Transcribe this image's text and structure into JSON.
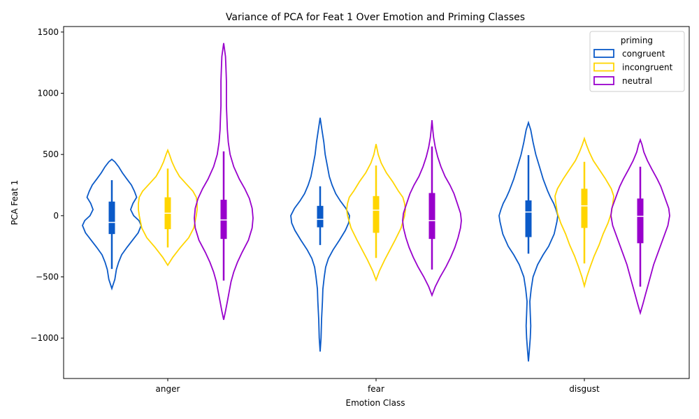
{
  "chart_data": {
    "type": "violin",
    "title": "Variance of PCA for Feat 1 Over Emotion and Priming Classes",
    "xlabel": "Emotion Class",
    "ylabel": "PCA Feat 1",
    "categories": [
      "anger",
      "fear",
      "disgust"
    ],
    "ylim": [
      -1330,
      1545
    ],
    "yticks": [
      -1000,
      -500,
      0,
      500,
      1000,
      1500
    ],
    "ytick_labels": [
      "−1000",
      "−500",
      "0",
      "500",
      "1000",
      "1500"
    ],
    "grid": false,
    "legend": {
      "title": "priming",
      "position": "top-right"
    },
    "series": [
      {
        "name": "congruent",
        "color": "#0b5ac8",
        "violins": [
          {
            "min": -595,
            "max": 460,
            "q1": -150,
            "median": -55,
            "q3": 115,
            "wlow": -435,
            "whigh": 290,
            "profile": [
              [
                -595,
                0
              ],
              [
                -520,
                8
              ],
              [
                -440,
                12
              ],
              [
                -380,
                18
              ],
              [
                -320,
                26
              ],
              [
                -260,
                40
              ],
              [
                -200,
                55
              ],
              [
                -140,
                70
              ],
              [
                -80,
                78
              ],
              [
                -40,
                72
              ],
              [
                0,
                58
              ],
              [
                50,
                50
              ],
              [
                100,
                56
              ],
              [
                150,
                66
              ],
              [
                200,
                60
              ],
              [
                250,
                52
              ],
              [
                300,
                40
              ],
              [
                350,
                28
              ],
              [
                400,
                18
              ],
              [
                440,
                8
              ],
              [
                460,
                0
              ]
            ]
          },
          {
            "min": -1110,
            "max": 800,
            "q1": -95,
            "median": -30,
            "q3": 80,
            "wlow": -240,
            "whigh": 240,
            "profile": [
              [
                -1110,
                0
              ],
              [
                -1000,
                2
              ],
              [
                -850,
                3
              ],
              [
                -700,
                5
              ],
              [
                -600,
                6
              ],
              [
                -500,
                9
              ],
              [
                -420,
                12
              ],
              [
                -350,
                18
              ],
              [
                -280,
                28
              ],
              [
                -200,
                42
              ],
              [
                -120,
                55
              ],
              [
                -60,
                62
              ],
              [
                0,
                64
              ],
              [
                60,
                56
              ],
              [
                120,
                44
              ],
              [
                180,
                34
              ],
              [
                250,
                26
              ],
              [
                320,
                20
              ],
              [
                400,
                16
              ],
              [
                500,
                11
              ],
              [
                600,
                8
              ],
              [
                700,
                4
              ],
              [
                800,
                0
              ]
            ]
          },
          {
            "min": -1190,
            "max": 760,
            "q1": -175,
            "median": 30,
            "q3": 125,
            "wlow": -310,
            "whigh": 495,
            "profile": [
              [
                -1190,
                0
              ],
              [
                -1100,
                2
              ],
              [
                -1000,
                4
              ],
              [
                -900,
                5
              ],
              [
                -800,
                4
              ],
              [
                -700,
                3
              ],
              [
                -600,
                6
              ],
              [
                -500,
                10
              ],
              [
                -400,
                20
              ],
              [
                -320,
                32
              ],
              [
                -250,
                44
              ],
              [
                -150,
                56
              ],
              [
                -50,
                62
              ],
              [
                0,
                64
              ],
              [
                50,
                60
              ],
              [
                100,
                55
              ],
              [
                150,
                48
              ],
              [
                200,
                42
              ],
              [
                300,
                32
              ],
              [
                400,
                24
              ],
              [
                500,
                16
              ],
              [
                600,
                10
              ],
              [
                700,
                5
              ],
              [
                760,
                0
              ]
            ]
          }
        ]
      },
      {
        "name": "incongruent",
        "color": "#ffd500",
        "violins": [
          {
            "min": -405,
            "max": 535,
            "q1": -110,
            "median": 20,
            "q3": 150,
            "wlow": -260,
            "whigh": 385,
            "profile": [
              [
                -405,
                0
              ],
              [
                -340,
                12
              ],
              [
                -260,
                30
              ],
              [
                -180,
                50
              ],
              [
                -100,
                62
              ],
              [
                0,
                68
              ],
              [
                50,
                70
              ],
              [
                100,
                70
              ],
              [
                150,
                68
              ],
              [
                200,
                60
              ],
              [
                260,
                44
              ],
              [
                320,
                28
              ],
              [
                380,
                18
              ],
              [
                440,
                10
              ],
              [
                500,
                4
              ],
              [
                535,
                0
              ]
            ]
          },
          {
            "min": -525,
            "max": 585,
            "q1": -140,
            "median": 45,
            "q3": 160,
            "wlow": -345,
            "whigh": 410,
            "profile": [
              [
                -525,
                0
              ],
              [
                -450,
                8
              ],
              [
                -360,
                20
              ],
              [
                -280,
                32
              ],
              [
                -200,
                44
              ],
              [
                -100,
                58
              ],
              [
                0,
                66
              ],
              [
                50,
                68
              ],
              [
                100,
                66
              ],
              [
                150,
                62
              ],
              [
                200,
                52
              ],
              [
                280,
                38
              ],
              [
                350,
                24
              ],
              [
                430,
                12
              ],
              [
                500,
                5
              ],
              [
                585,
                0
              ]
            ]
          },
          {
            "min": -575,
            "max": 630,
            "q1": -100,
            "median": 80,
            "q3": 220,
            "wlow": -390,
            "whigh": 440,
            "profile": [
              [
                -575,
                0
              ],
              [
                -500,
                6
              ],
              [
                -420,
                14
              ],
              [
                -330,
                24
              ],
              [
                -240,
                36
              ],
              [
                -150,
                46
              ],
              [
                -60,
                58
              ],
              [
                20,
                66
              ],
              [
                100,
                70
              ],
              [
                160,
                72
              ],
              [
                220,
                66
              ],
              [
                300,
                52
              ],
              [
                380,
                36
              ],
              [
                450,
                22
              ],
              [
                520,
                12
              ],
              [
                580,
                5
              ],
              [
                630,
                0
              ]
            ]
          }
        ]
      },
      {
        "name": "neutral",
        "color": "#9900cc",
        "violins": [
          {
            "min": -850,
            "max": 1410,
            "q1": -190,
            "median": -35,
            "q3": 130,
            "wlow": -530,
            "whigh": 525,
            "profile": [
              [
                -850,
                0
              ],
              [
                -780,
                4
              ],
              [
                -700,
                8
              ],
              [
                -620,
                12
              ],
              [
                -540,
                16
              ],
              [
                -460,
                22
              ],
              [
                -380,
                30
              ],
              [
                -300,
                40
              ],
              [
                -200,
                54
              ],
              [
                -100,
                62
              ],
              [
                -20,
                64
              ],
              [
                60,
                62
              ],
              [
                140,
                56
              ],
              [
                220,
                46
              ],
              [
                300,
                34
              ],
              [
                400,
                22
              ],
              [
                500,
                14
              ],
              [
                600,
                10
              ],
              [
                700,
                8
              ],
              [
                800,
                7
              ],
              [
                900,
                6
              ],
              [
                1000,
                6
              ],
              [
                1100,
                6
              ],
              [
                1200,
                5
              ],
              [
                1300,
                4
              ],
              [
                1410,
                0
              ]
            ]
          },
          {
            "min": -650,
            "max": 780,
            "q1": -190,
            "median": -40,
            "q3": 185,
            "wlow": -440,
            "whigh": 565,
            "profile": [
              [
                -650,
                0
              ],
              [
                -580,
                8
              ],
              [
                -500,
                20
              ],
              [
                -420,
                34
              ],
              [
                -340,
                46
              ],
              [
                -260,
                56
              ],
              [
                -180,
                64
              ],
              [
                -100,
                70
              ],
              [
                -40,
                72
              ],
              [
                20,
                70
              ],
              [
                100,
                62
              ],
              [
                180,
                54
              ],
              [
                250,
                44
              ],
              [
                320,
                32
              ],
              [
                400,
                22
              ],
              [
                480,
                14
              ],
              [
                560,
                8
              ],
              [
                640,
                4
              ],
              [
                700,
                2
              ],
              [
                780,
                0
              ]
            ]
          },
          {
            "min": -795,
            "max": 620,
            "q1": -225,
            "median": -5,
            "q3": 140,
            "wlow": -580,
            "whigh": 400,
            "profile": [
              [
                -795,
                0
              ],
              [
                -720,
                6
              ],
              [
                -640,
                12
              ],
              [
                -560,
                18
              ],
              [
                -480,
                24
              ],
              [
                -400,
                30
              ],
              [
                -320,
                38
              ],
              [
                -240,
                46
              ],
              [
                -160,
                54
              ],
              [
                -80,
                62
              ],
              [
                0,
                66
              ],
              [
                60,
                64
              ],
              [
                120,
                58
              ],
              [
                180,
                52
              ],
              [
                240,
                46
              ],
              [
                300,
                38
              ],
              [
                380,
                26
              ],
              [
                450,
                16
              ],
              [
                520,
                8
              ],
              [
                580,
                4
              ],
              [
                620,
                0
              ]
            ]
          }
        ]
      }
    ]
  }
}
